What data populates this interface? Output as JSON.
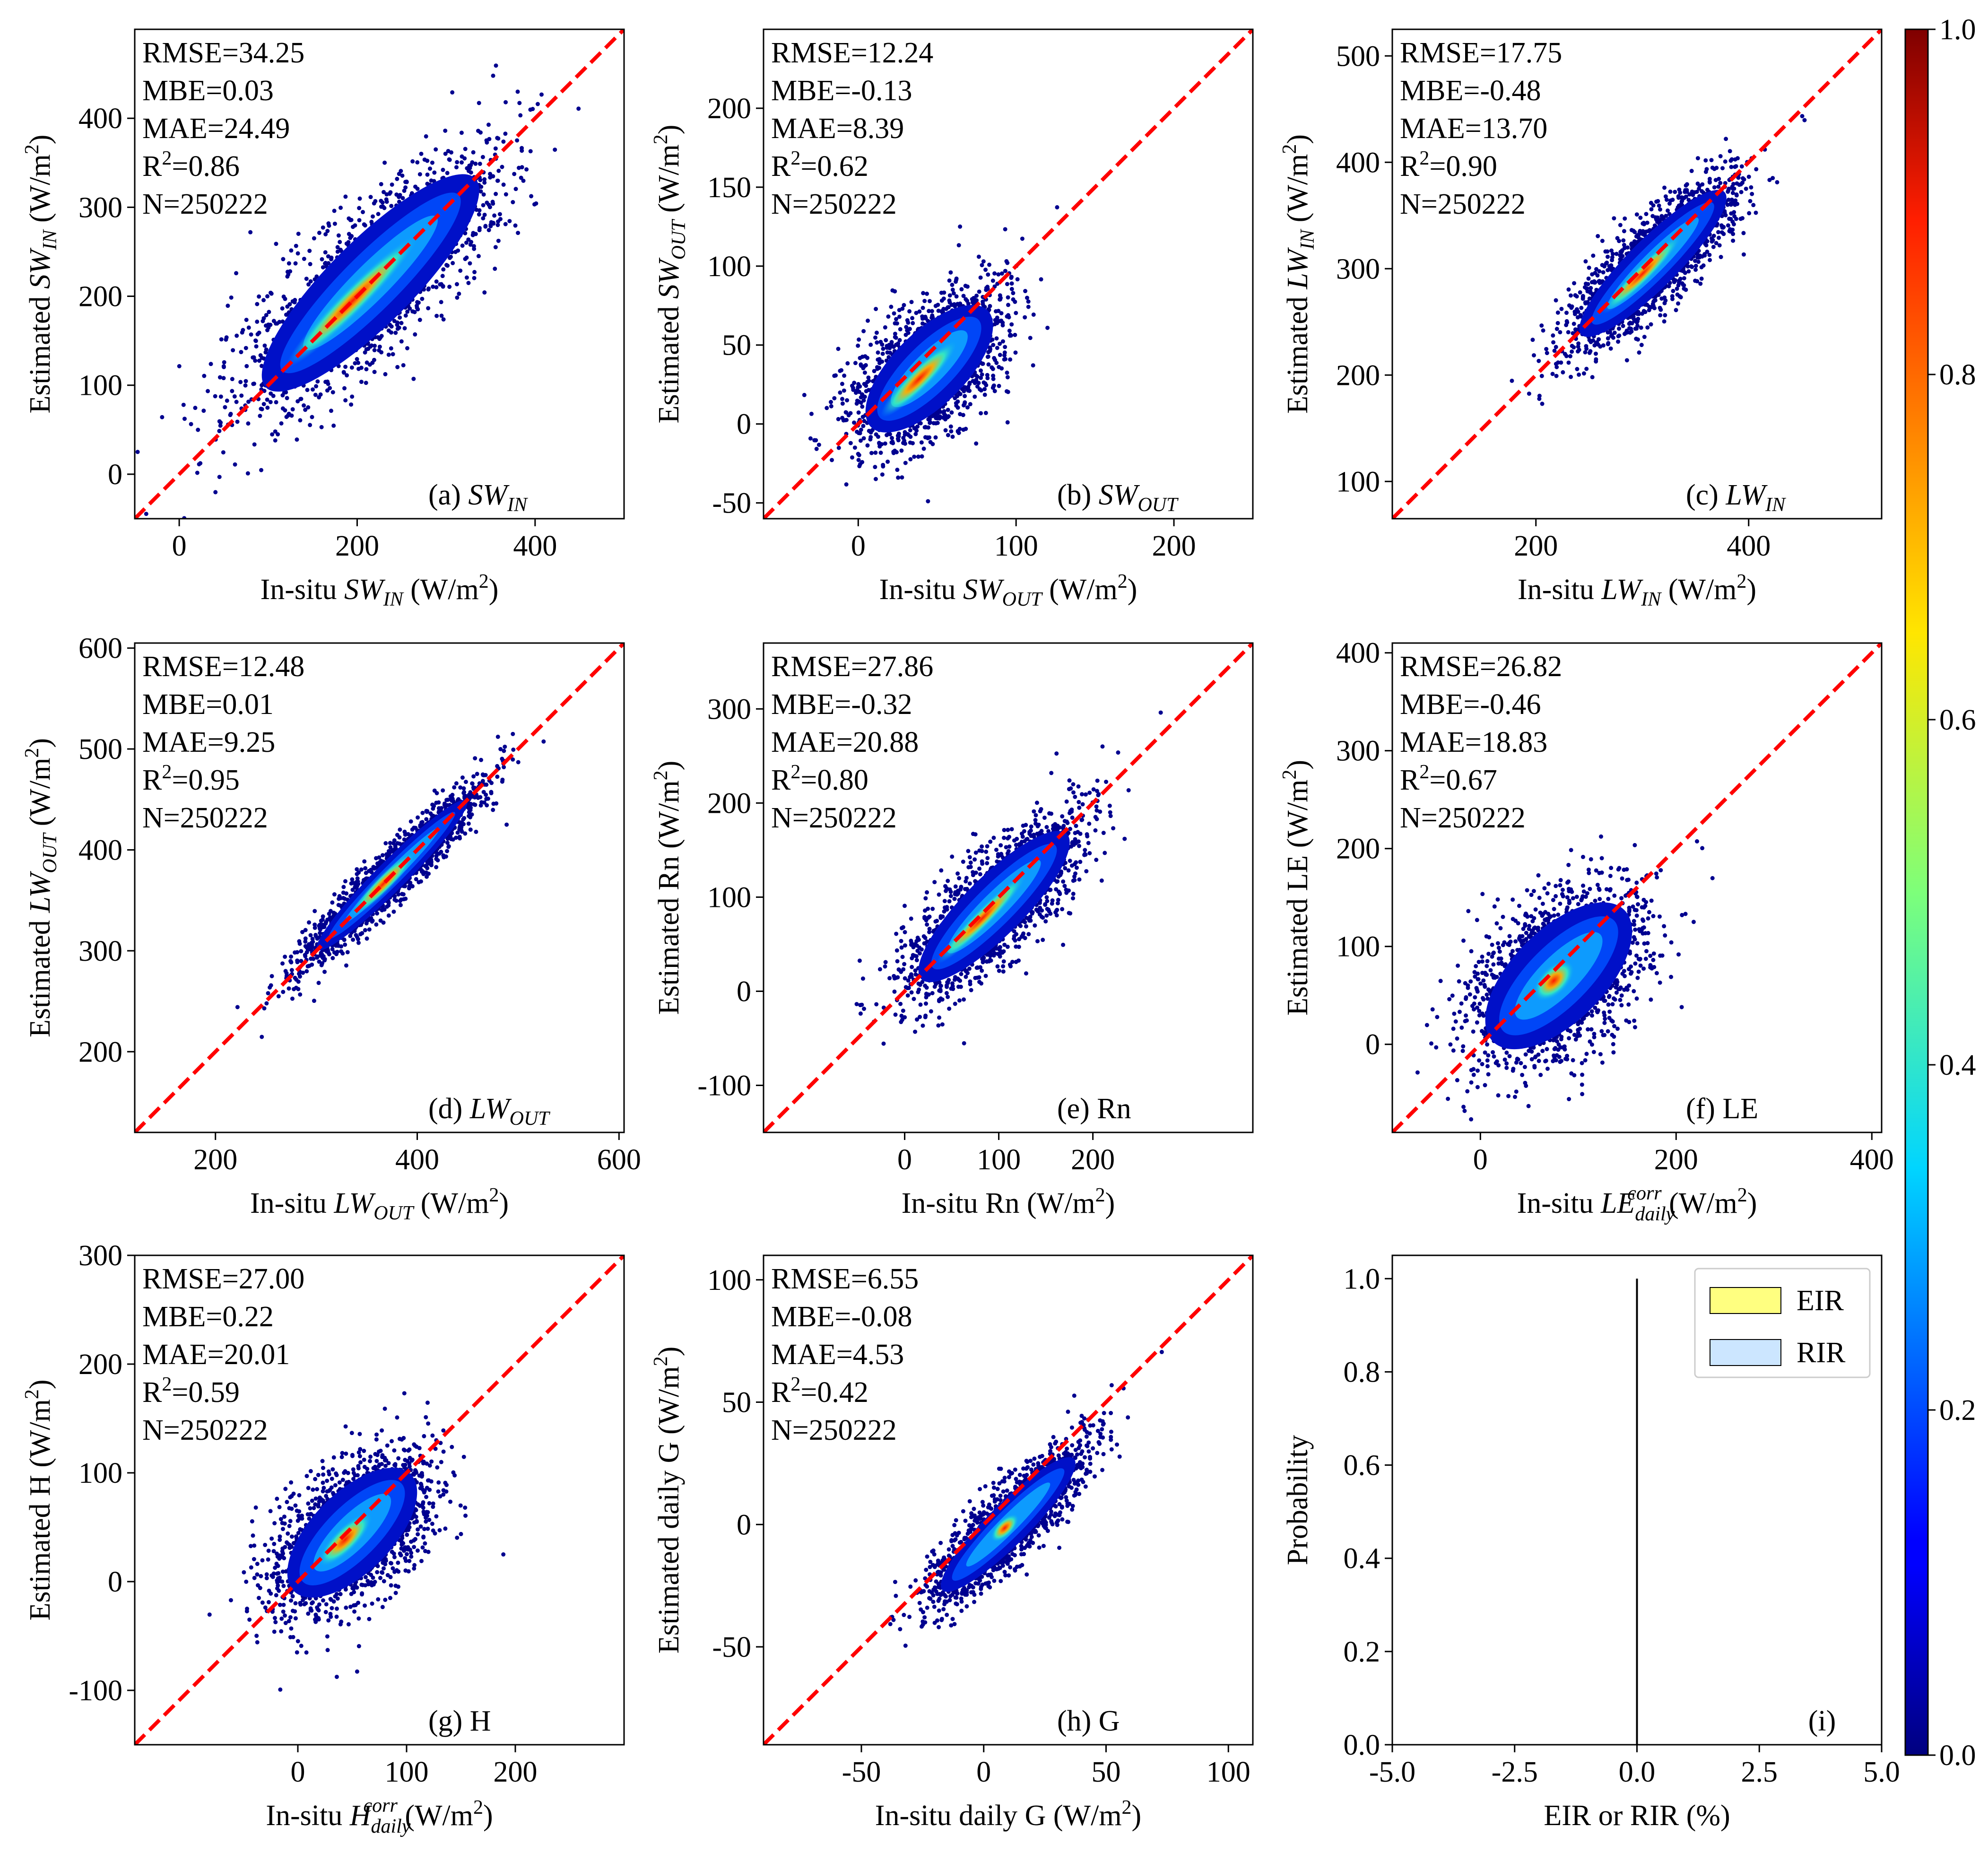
{
  "chart_data": [
    {
      "id": "a",
      "type": "scatter",
      "stats": [
        "RMSE=34.25",
        "MBE=0.03",
        "MAE=24.49",
        "R2=0.86",
        "N=250222"
      ],
      "panel_label": "(a) SW_IN",
      "xlabel": "In-situ SW_IN (W/m2)",
      "ylabel": "Estimated SW_IN (W/m2)",
      "xlim": [
        -50,
        500
      ],
      "ylim": [
        -50,
        500
      ],
      "xticks": [
        0,
        200,
        400
      ],
      "yticks": [
        0,
        100,
        200,
        300,
        400
      ],
      "density_cloud": {
        "center": [
          215,
          215
        ],
        "spread_along": 175,
        "spread_across": 45,
        "core_length": 140
      }
    },
    {
      "id": "b",
      "type": "scatter",
      "stats": [
        "RMSE=12.24",
        "MBE=-0.13",
        "MAE=8.39",
        "R2=0.62",
        "N=250222"
      ],
      "panel_label": "(b) SW_OUT",
      "xlabel": "In-situ SW_OUT (W/m2)",
      "ylabel": "Estimated SW_OUT (W/m2)",
      "xlim": [
        -60,
        250
      ],
      "ylim": [
        -60,
        250
      ],
      "xticks": [
        0,
        100,
        200
      ],
      "yticks": [
        -50,
        0,
        50,
        100,
        150,
        200
      ],
      "density_cloud": {
        "center": [
          45,
          35
        ],
        "spread_along": 55,
        "spread_across": 22,
        "core_length": 45
      }
    },
    {
      "id": "c",
      "type": "scatter",
      "stats": [
        "RMSE=17.75",
        "MBE=-0.48",
        "MAE=13.70",
        "R2=0.90",
        "N=250222"
      ],
      "panel_label": "(c) LW_IN",
      "xlabel": "In-situ LW_IN (W/m2)",
      "ylabel": "Estimated LW_IN (W/m2)",
      "xlim": [
        65,
        525
      ],
      "ylim": [
        65,
        525
      ],
      "xticks": [
        200,
        400
      ],
      "yticks": [
        100,
        200,
        300,
        400,
        500
      ],
      "density_cloud": {
        "center": [
          310,
          305
        ],
        "spread_along": 100,
        "spread_across": 22,
        "core_length": 70
      }
    },
    {
      "id": "d",
      "type": "scatter",
      "stats": [
        "RMSE=12.48",
        "MBE=0.01",
        "MAE=9.25",
        "R2=0.95",
        "N=250222"
      ],
      "panel_label": "(d) LW_OUT",
      "xlabel": "In-situ LW_OUT (W/m2)",
      "ylabel": "Estimated LW_OUT (W/m2)",
      "xlim": [
        120,
        605
      ],
      "ylim": [
        120,
        605
      ],
      "xticks": [
        200,
        400,
        600
      ],
      "yticks": [
        200,
        300,
        400,
        500,
        600
      ],
      "density_cloud": {
        "center": [
          375,
          375
        ],
        "spread_along": 110,
        "spread_across": 14,
        "core_length": 60
      }
    },
    {
      "id": "e",
      "type": "scatter",
      "stats": [
        "RMSE=27.86",
        "MBE=-0.32",
        "MAE=20.88",
        "R2=0.80",
        "N=250222"
      ],
      "panel_label": "(e) Rn",
      "xlabel": "In-situ Rn (W/m2)",
      "ylabel": "Estimated Rn (W/m2)",
      "xlim": [
        -150,
        370
      ],
      "ylim": [
        -150,
        370
      ],
      "xticks": [
        0,
        100,
        200
      ],
      "yticks": [
        -100,
        0,
        100,
        200,
        300
      ],
      "density_cloud": {
        "center": [
          95,
          90
        ],
        "spread_along": 115,
        "spread_across": 30,
        "core_length": 90
      }
    },
    {
      "id": "f",
      "type": "scatter",
      "stats": [
        "RMSE=26.82",
        "MBE=-0.46",
        "MAE=18.83",
        "R2=0.67",
        "N=250222"
      ],
      "panel_label": "(f) LE",
      "xlabel": "In-situ LE_daily^corr (W/m2)",
      "ylabel": "Estimated LE (W/m2)",
      "xlim": [
        -90,
        410
      ],
      "ylim": [
        -90,
        410
      ],
      "xticks": [
        0,
        200,
        400
      ],
      "yticks": [
        0,
        100,
        200,
        300,
        400
      ],
      "density_cloud": {
        "center": [
          80,
          70
        ],
        "spread_along": 100,
        "spread_across": 45,
        "core_length": 35
      }
    },
    {
      "id": "g",
      "type": "scatter",
      "stats": [
        "RMSE=27.00",
        "MBE=0.22",
        "MAE=20.01",
        "R2=0.59",
        "N=250222"
      ],
      "panel_label": "(g) H",
      "xlabel": "In-situ H_daily^corr (W/m2)",
      "ylabel": "Estimated H (W/m2)",
      "xlim": [
        -150,
        300
      ],
      "ylim": [
        -150,
        300
      ],
      "xticks": [
        0,
        100,
        200
      ],
      "yticks": [
        -100,
        0,
        100,
        200,
        300
      ],
      "density_cloud": {
        "center": [
          50,
          45
        ],
        "spread_along": 80,
        "spread_across": 35,
        "core_length": 45
      }
    },
    {
      "id": "h",
      "type": "scatter",
      "stats": [
        "RMSE=6.55",
        "MBE=-0.08",
        "MAE=4.53",
        "R2=0.42",
        "N=250222"
      ],
      "panel_label": "(h) G",
      "xlabel": "In-situ daily G (W/m2)",
      "ylabel": "Estimated daily G (W/m2)",
      "xlim": [
        -90,
        110
      ],
      "ylim": [
        -90,
        110
      ],
      "xticks": [
        -50,
        0,
        50,
        100
      ],
      "yticks": [
        -50,
        0,
        50,
        100
      ],
      "density_cloud": {
        "center": [
          10,
          0
        ],
        "spread_along": 40,
        "spread_across": 8,
        "core_length": 10
      }
    },
    {
      "id": "i",
      "type": "line",
      "panel_label": "(i)",
      "xlabel": "EIR or RIR (%)",
      "ylabel": "Probability",
      "xlim": [
        -5.0,
        5.0
      ],
      "ylim": [
        0.0,
        1.05
      ],
      "xticks": [
        "-5.0",
        "-2.5",
        "0.0",
        "2.5",
        "5.0"
      ],
      "yticks": [
        "0.0",
        "0.2",
        "0.4",
        "0.6",
        "0.8",
        "1.0"
      ],
      "series": [
        {
          "name": "EIR",
          "color": "#ffff80",
          "x": [
            0,
            0
          ],
          "y": [
            0,
            1.0
          ]
        },
        {
          "name": "RIR",
          "color": "#cce6ff",
          "x": [
            0,
            0
          ],
          "y": [
            0,
            1.0
          ]
        }
      ],
      "legend_position": "top-right"
    }
  ],
  "colorbar": {
    "colormap": "jet",
    "range": [
      0.0,
      1.0
    ],
    "ticks": [
      "0.0",
      "0.2",
      "0.4",
      "0.6",
      "0.8",
      "1.0"
    ]
  },
  "style": {
    "diagonal_color": "#ff0000",
    "low_density_color": "#00008f"
  }
}
